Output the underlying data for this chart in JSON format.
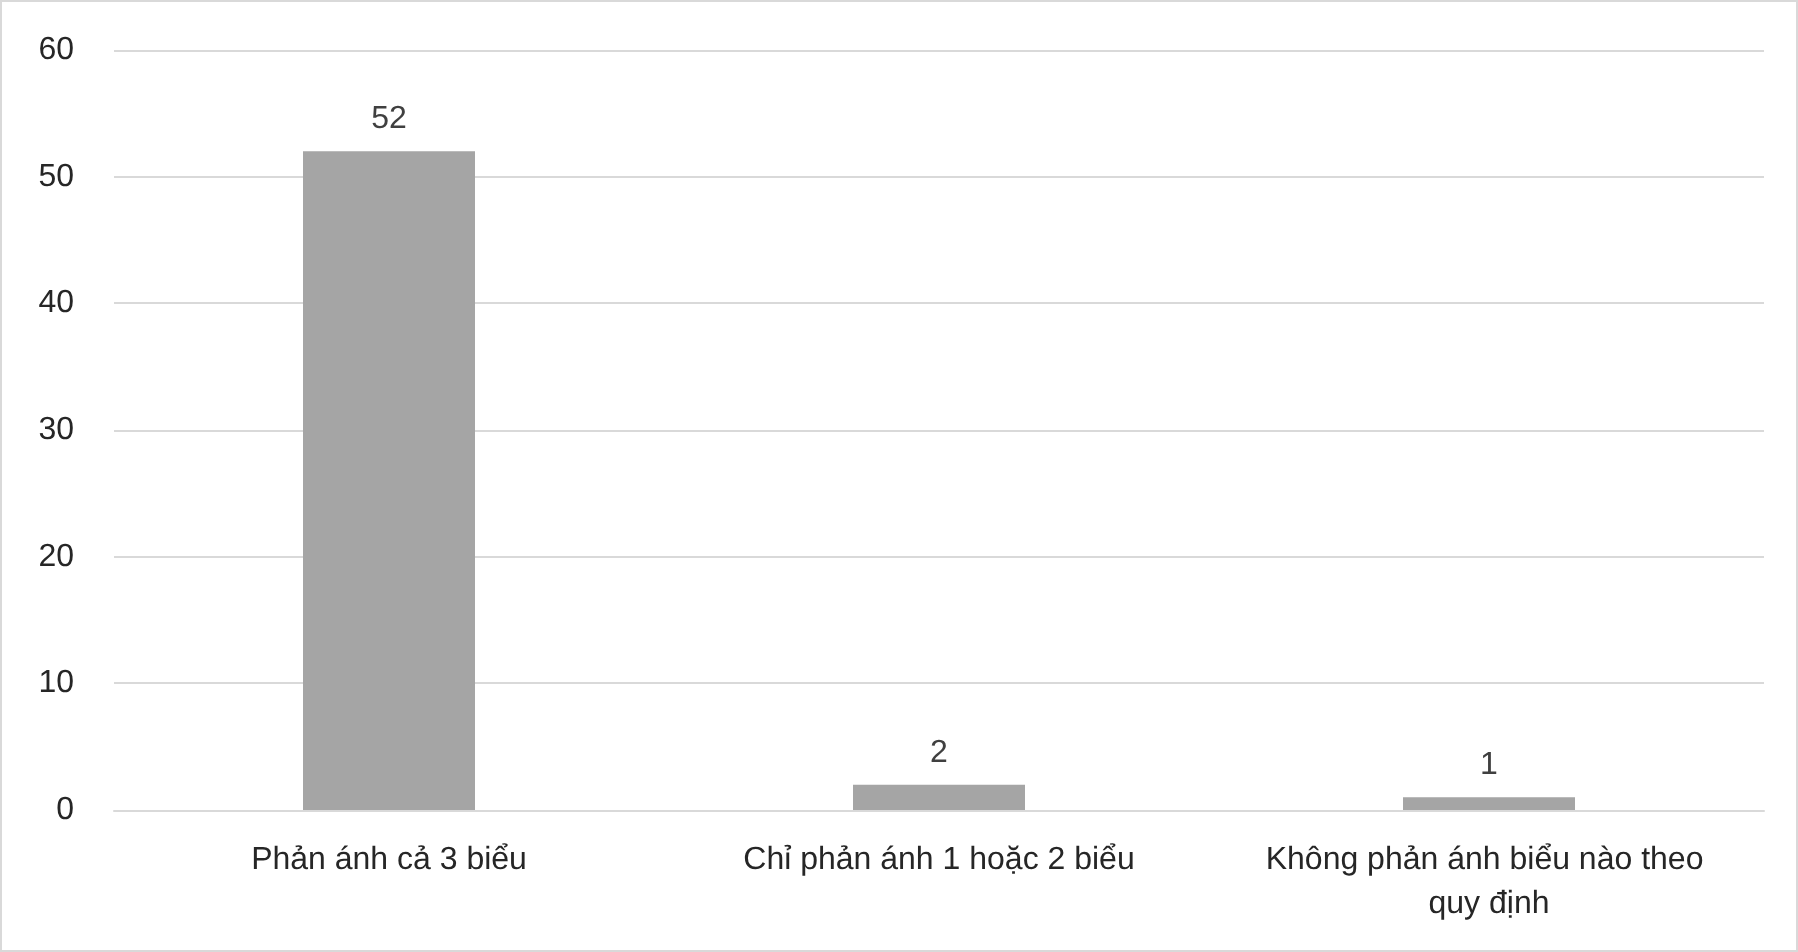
{
  "chart_data": {
    "type": "bar",
    "categories": [
      "Phản ánh cả 3 biểu",
      "Chỉ phản ánh 1 hoặc 2 biểu",
      "Không phản ánh biểu nào theo quy định"
    ],
    "values": [
      52,
      2,
      1
    ],
    "color": "#a5a5a5",
    "ylim": [
      0,
      60
    ],
    "yticks": [
      0,
      10,
      20,
      30,
      40,
      50,
      60
    ],
    "grid": "y",
    "data_labels": true
  }
}
